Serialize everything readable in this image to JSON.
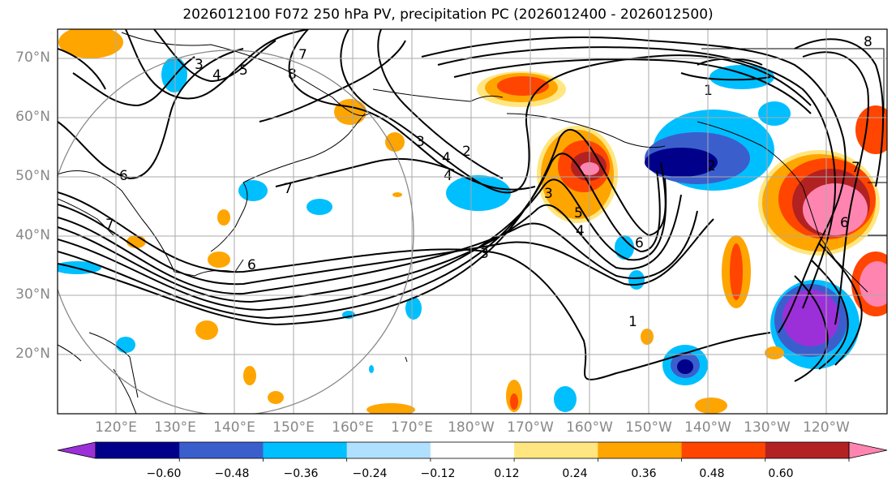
{
  "title": "2026012100 F072 250 hPa PV, precipitation PC (2026012400 - 2026012500)",
  "lat_labels": [
    "70°N",
    "60°N",
    "50°N",
    "40°N",
    "30°N",
    "20°N"
  ],
  "lon_labels": [
    "120°E",
    "130°E",
    "140°E",
    "150°E",
    "160°E",
    "170°E",
    "180°W",
    "170°W",
    "160°W",
    "150°W",
    "140°W",
    "130°W",
    "120°W"
  ],
  "contour_labels": [
    "3",
    "4",
    "5",
    "8",
    "7",
    "6",
    "7",
    "3",
    "4",
    "2",
    "1",
    "7",
    "4",
    "3",
    "5",
    "4",
    "6",
    "2",
    "8",
    "6",
    "7",
    "6",
    "3",
    "1"
  ],
  "colorbar": {
    "ticks": [
      "−0.60",
      "−0.48",
      "−0.36",
      "−0.24",
      "−0.12",
      "0.12",
      "0.24",
      "0.36",
      "0.48",
      "0.60"
    ],
    "colors": [
      "#9b30d8",
      "#00008b",
      "#3a5fcd",
      "#00bfff",
      "#b0e0ff",
      "#ffffff",
      "#ffe680",
      "#ffa500",
      "#ff4500",
      "#b22222",
      "#ff85b0"
    ]
  },
  "colors": {
    "land": "#000000",
    "grid": "#aaaaaa",
    "circle": "#888888"
  }
}
